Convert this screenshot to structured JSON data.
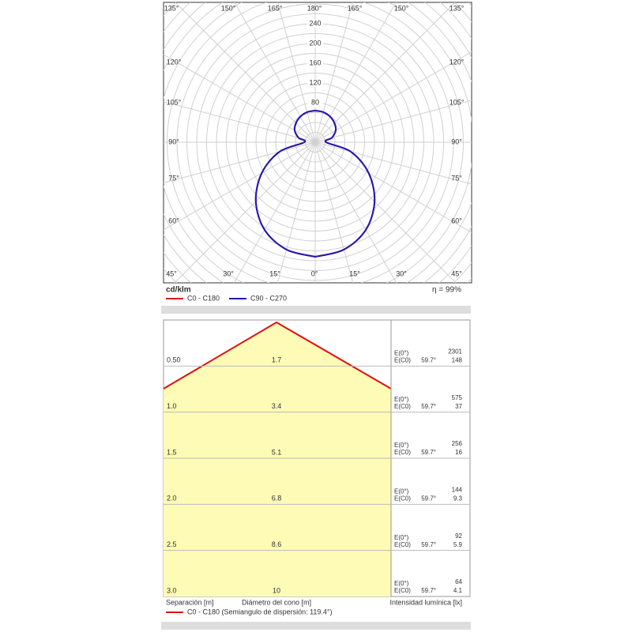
{
  "polar": {
    "type": "polar",
    "unit_label": "cd/klm",
    "efficiency": "η = 99%",
    "angles": [
      0,
      15,
      30,
      45,
      60,
      75,
      90,
      105,
      120,
      135,
      150,
      165,
      180
    ],
    "rlim": [
      0,
      240
    ],
    "rticks": [
      80,
      120,
      160,
      200,
      240
    ],
    "top_labels": [
      "135°",
      "150°",
      "165°",
      "180°",
      "165°",
      "150°",
      "135°"
    ],
    "bottom_labels": [
      "45°",
      "30°",
      "15°",
      "0°",
      "15°",
      "30°",
      "45°"
    ],
    "left_labels": [
      "120°",
      "105°",
      "90°",
      "75°",
      "60°"
    ],
    "right_labels": [
      "120°",
      "105°",
      "90°",
      "75°",
      "60°"
    ],
    "series": [
      {
        "name": "C0 - C180",
        "color": "#e01010",
        "values": [
          232,
          225,
          205,
          170,
          125,
          75,
          22,
          35,
          48,
          55,
          60,
          63,
          64
        ]
      },
      {
        "name": "C90 - C270",
        "color": "#1a1ab8",
        "values": [
          232,
          225,
          205,
          170,
          125,
          75,
          22,
          35,
          48,
          55,
          60,
          63,
          64
        ]
      }
    ]
  },
  "cone": {
    "rows": [
      {
        "separation": "0.50",
        "diameter": "1.7",
        "e0_label": "E(0°)",
        "e0": "2301",
        "ec0_label": "E(C0)",
        "angle": "59.7°",
        "ec0": "148"
      },
      {
        "separation": "1.0",
        "diameter": "3.4",
        "e0_label": "E(0°)",
        "e0": "575",
        "ec0_label": "E(C0)",
        "angle": "59.7°",
        "ec0": "37"
      },
      {
        "separation": "1.5",
        "diameter": "5.1",
        "e0_label": "E(0°)",
        "e0": "256",
        "ec0_label": "E(C0)",
        "angle": "59.7°",
        "ec0": "16"
      },
      {
        "separation": "2.0",
        "diameter": "6.8",
        "e0_label": "E(0°)",
        "e0": "144",
        "ec0_label": "E(C0)",
        "angle": "59.7°",
        "ec0": "9.3"
      },
      {
        "separation": "2.5",
        "diameter": "8.6",
        "e0_label": "E(0°)",
        "e0": "92",
        "ec0_label": "E(C0)",
        "angle": "59.7°",
        "ec0": "5.9"
      },
      {
        "separation": "3.0",
        "diameter": "10",
        "e0_label": "E(0°)",
        "e0": "64",
        "ec0_label": "E(C0)",
        "angle": "59.7°",
        "ec0": "4.1"
      }
    ],
    "col_separation": "Separación [m]",
    "col_diameter": "Diámetro del cono [m]",
    "col_intensity": "Intensidad lumínica [lx]",
    "legend": "C0 - C180 (Semiangulo de dispersión: 119.4°)"
  }
}
